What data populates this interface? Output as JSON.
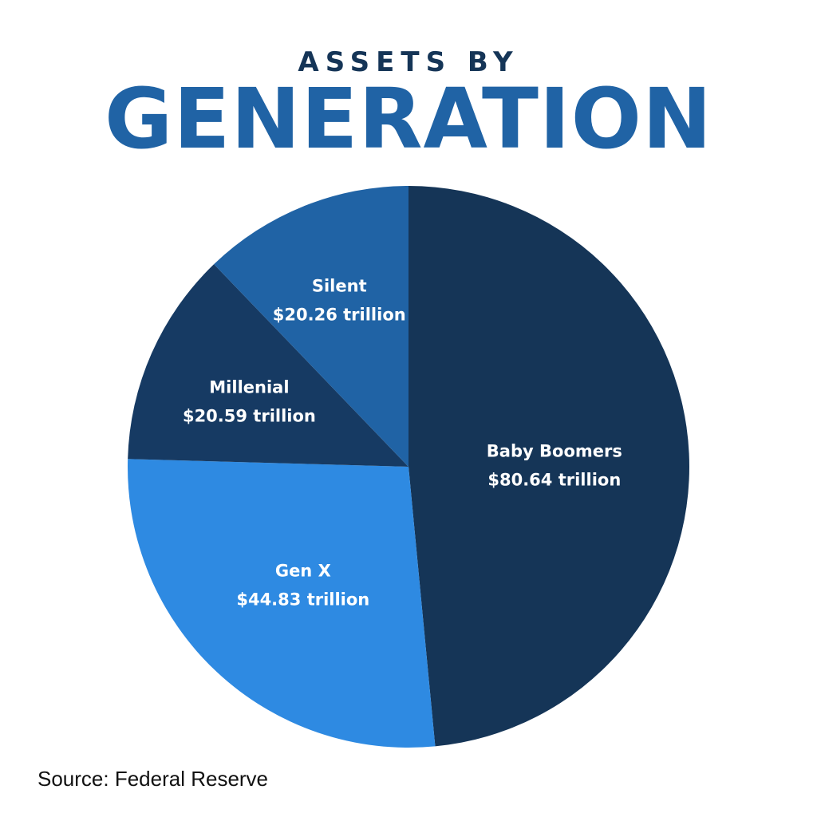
{
  "header": {
    "kicker": "ASSETS BY",
    "title": "GENERATION"
  },
  "source": "Source: Federal Reserve",
  "colors": {
    "baby_boomers": "#153557",
    "gen_x": "#2e8ae2",
    "millenial": "#163a63",
    "silent": "#2063a5",
    "kicker": "#153557",
    "title": "#2063a5"
  },
  "chart_data": {
    "type": "pie",
    "title": "ASSETS BY GENERATION",
    "start_angle_deg": 0,
    "direction": "clockwise",
    "slices": [
      {
        "name": "Baby Boomers",
        "value": 80.64,
        "value_label": "$80.64 trillion",
        "color": "#153557"
      },
      {
        "name": "Gen X",
        "value": 44.83,
        "value_label": "$44.83 trillion",
        "color": "#2e8ae2"
      },
      {
        "name": "Millenial",
        "value": 20.59,
        "value_label": "$20.59 trillion",
        "color": "#163a63"
      },
      {
        "name": "Silent",
        "value": 20.26,
        "value_label": "$20.26 trillion",
        "color": "#2063a5"
      }
    ],
    "legend": "none",
    "grid": false
  }
}
